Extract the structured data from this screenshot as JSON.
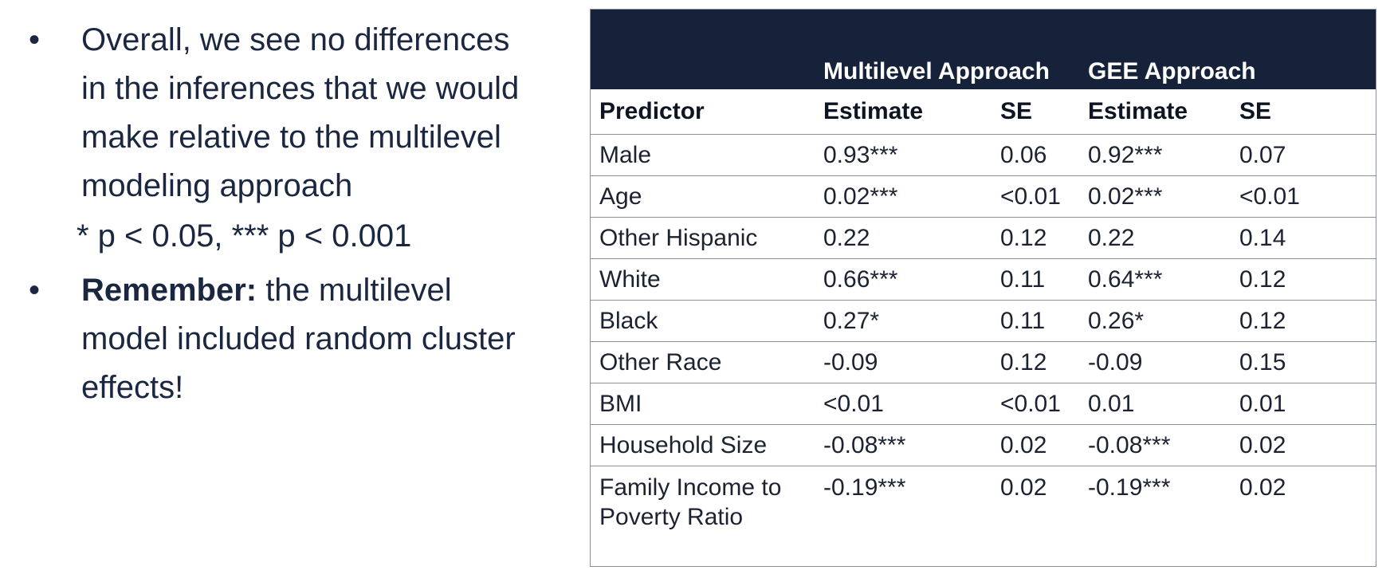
{
  "bullets": {
    "first": "Overall, we see no differences in the inferences that we would make relative to the multilevel modeling approach",
    "significance_note": "* p < 0.05, *** p < 0.001",
    "second_bold": "Remember:",
    "second_rest": " the multilevel model included random cluster effects!",
    "marker": "•"
  },
  "table": {
    "group_headers": {
      "multilevel": "Multilevel Approach",
      "gee": "GEE Approach"
    },
    "column_headers": {
      "predictor": "Predictor",
      "estimate_1": "Estimate",
      "se_1": "SE",
      "estimate_2": "Estimate",
      "se_2": "SE"
    },
    "rows": [
      {
        "predictor": "Male",
        "ml_est": "0.93***",
        "ml_se": "0.06",
        "gee_est": "0.92***",
        "gee_se": "0.07"
      },
      {
        "predictor": "Age",
        "ml_est": "0.02***",
        "ml_se": "<0.01",
        "gee_est": "0.02***",
        "gee_se": "<0.01"
      },
      {
        "predictor": "Other Hispanic",
        "ml_est": "0.22",
        "ml_se": "0.12",
        "gee_est": "0.22",
        "gee_se": "0.14"
      },
      {
        "predictor": "White",
        "ml_est": "0.66***",
        "ml_se": "0.11",
        "gee_est": "0.64***",
        "gee_se": "0.12"
      },
      {
        "predictor": "Black",
        "ml_est": "0.27*",
        "ml_se": "0.11",
        "gee_est": "0.26*",
        "gee_se": "0.12"
      },
      {
        "predictor": "Other Race",
        "ml_est": "-0.09",
        "ml_se": "0.12",
        "gee_est": "-0.09",
        "gee_se": "0.15"
      },
      {
        "predictor": "BMI",
        "ml_est": "<0.01",
        "ml_se": "<0.01",
        "gee_est": "0.01",
        "gee_se": "0.01"
      },
      {
        "predictor": "Household Size",
        "ml_est": "-0.08***",
        "ml_se": "0.02",
        "gee_est": "-0.08***",
        "gee_se": "0.02"
      },
      {
        "predictor": "Family Income to Poverty Ratio",
        "ml_est": "-0.19***",
        "ml_se": "0.02",
        "gee_est": "-0.19***",
        "gee_se": "0.02"
      }
    ]
  },
  "colors": {
    "header_bg": "#152239",
    "text": "#1b2740"
  }
}
